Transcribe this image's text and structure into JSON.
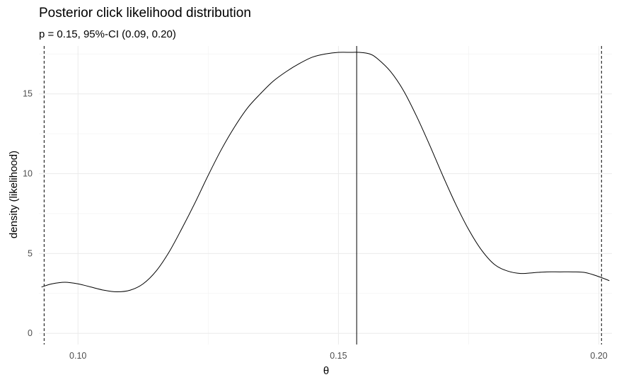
{
  "chart_data": {
    "type": "line",
    "title": "Posterior click likelihood distribution",
    "subtitle": "p = 0.15, 95%-CI (0.09, 0.20)",
    "xlabel": "θ",
    "ylabel": "density (likelihood)",
    "xlim": [
      0.0925,
      0.2025
    ],
    "ylim": [
      -0.7,
      18.0
    ],
    "x_ticks": [
      0.1,
      0.15,
      0.2
    ],
    "x_tick_labels": [
      "0.10",
      "0.15",
      "0.20"
    ],
    "y_ticks": [
      0,
      5,
      10,
      15
    ],
    "y_tick_labels": [
      "0",
      "5",
      "10",
      "15"
    ],
    "grid": true,
    "series": [
      {
        "x": [
          0.093,
          0.095,
          0.0975,
          0.1,
          0.1025,
          0.105,
          0.1075,
          0.11,
          0.1125,
          0.115,
          0.1175,
          0.12,
          0.1225,
          0.125,
          0.1275,
          0.13,
          0.1325,
          0.135,
          0.1375,
          0.14,
          0.1425,
          0.145,
          0.1475,
          0.15,
          0.1525,
          0.154,
          0.156,
          0.1575,
          0.16,
          0.1625,
          0.165,
          0.1675,
          0.17,
          0.1725,
          0.175,
          0.1775,
          0.18,
          0.1825,
          0.185,
          0.1875,
          0.19,
          0.1925,
          0.195,
          0.1975,
          0.2,
          0.202
        ],
        "y": [
          2.9,
          3.1,
          3.2,
          3.1,
          2.9,
          2.7,
          2.6,
          2.7,
          3.1,
          3.9,
          5.1,
          6.6,
          8.2,
          9.9,
          11.5,
          12.9,
          14.1,
          15.0,
          15.8,
          16.4,
          16.9,
          17.3,
          17.5,
          17.6,
          17.6,
          17.6,
          17.5,
          17.2,
          16.4,
          15.2,
          13.6,
          11.8,
          9.9,
          8.1,
          6.5,
          5.2,
          4.3,
          3.9,
          3.75,
          3.8,
          3.85,
          3.85,
          3.85,
          3.8,
          3.55,
          3.3
        ]
      }
    ],
    "reference_lines": [
      {
        "kind": "ci_lower",
        "x": 0.0935,
        "style": "dashed"
      },
      {
        "kind": "point_estimate",
        "x": 0.1535,
        "style": "solid"
      },
      {
        "kind": "ci_upper",
        "x": 0.2005,
        "style": "dashed"
      }
    ],
    "colors": {
      "line": "#000000",
      "grid_major": "#ebebeb",
      "grid_minor": "#f4f4f4",
      "tick_text": "#4d4d4d",
      "background": "#ffffff"
    }
  }
}
